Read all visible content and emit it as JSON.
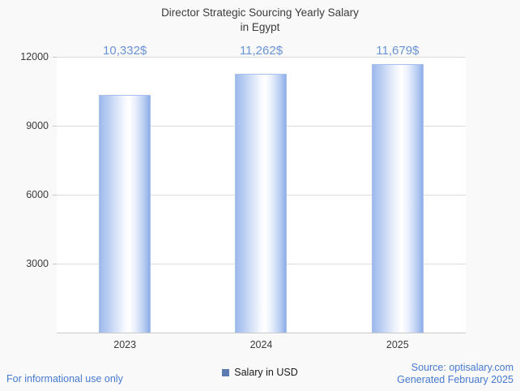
{
  "title": {
    "line1": "Director Strategic Sourcing Yearly Salary",
    "line2": "in Egypt"
  },
  "chart_data": {
    "type": "bar",
    "title": "Director Strategic Sourcing Yearly Salary in Egypt",
    "categories": [
      "2023",
      "2024",
      "2025"
    ],
    "series": [
      {
        "name": "Salary in USD",
        "values": [
          10332,
          11262,
          11679
        ]
      }
    ],
    "value_labels": [
      "10,332$",
      "11,262$",
      "11,679$"
    ],
    "xlabel": "",
    "ylabel": "",
    "ylim": [
      0,
      12000
    ],
    "yticks": [
      3000,
      6000,
      9000,
      12000
    ],
    "grid": true,
    "legend_position": "bottom"
  },
  "legend": {
    "label": "Salary in USD"
  },
  "footer": {
    "disclaimer": "For informational use only",
    "source": "Source: optisalary.com",
    "generated": "Generated February 2025"
  },
  "colors": {
    "accent_blue": "#6a93d6",
    "link_blue": "#4779d0",
    "legend_swatch": "#5b7ab0",
    "bar_edge": "#a7c0ee",
    "gridline": "#dcdcdc",
    "axis": "#c9c9c9"
  }
}
